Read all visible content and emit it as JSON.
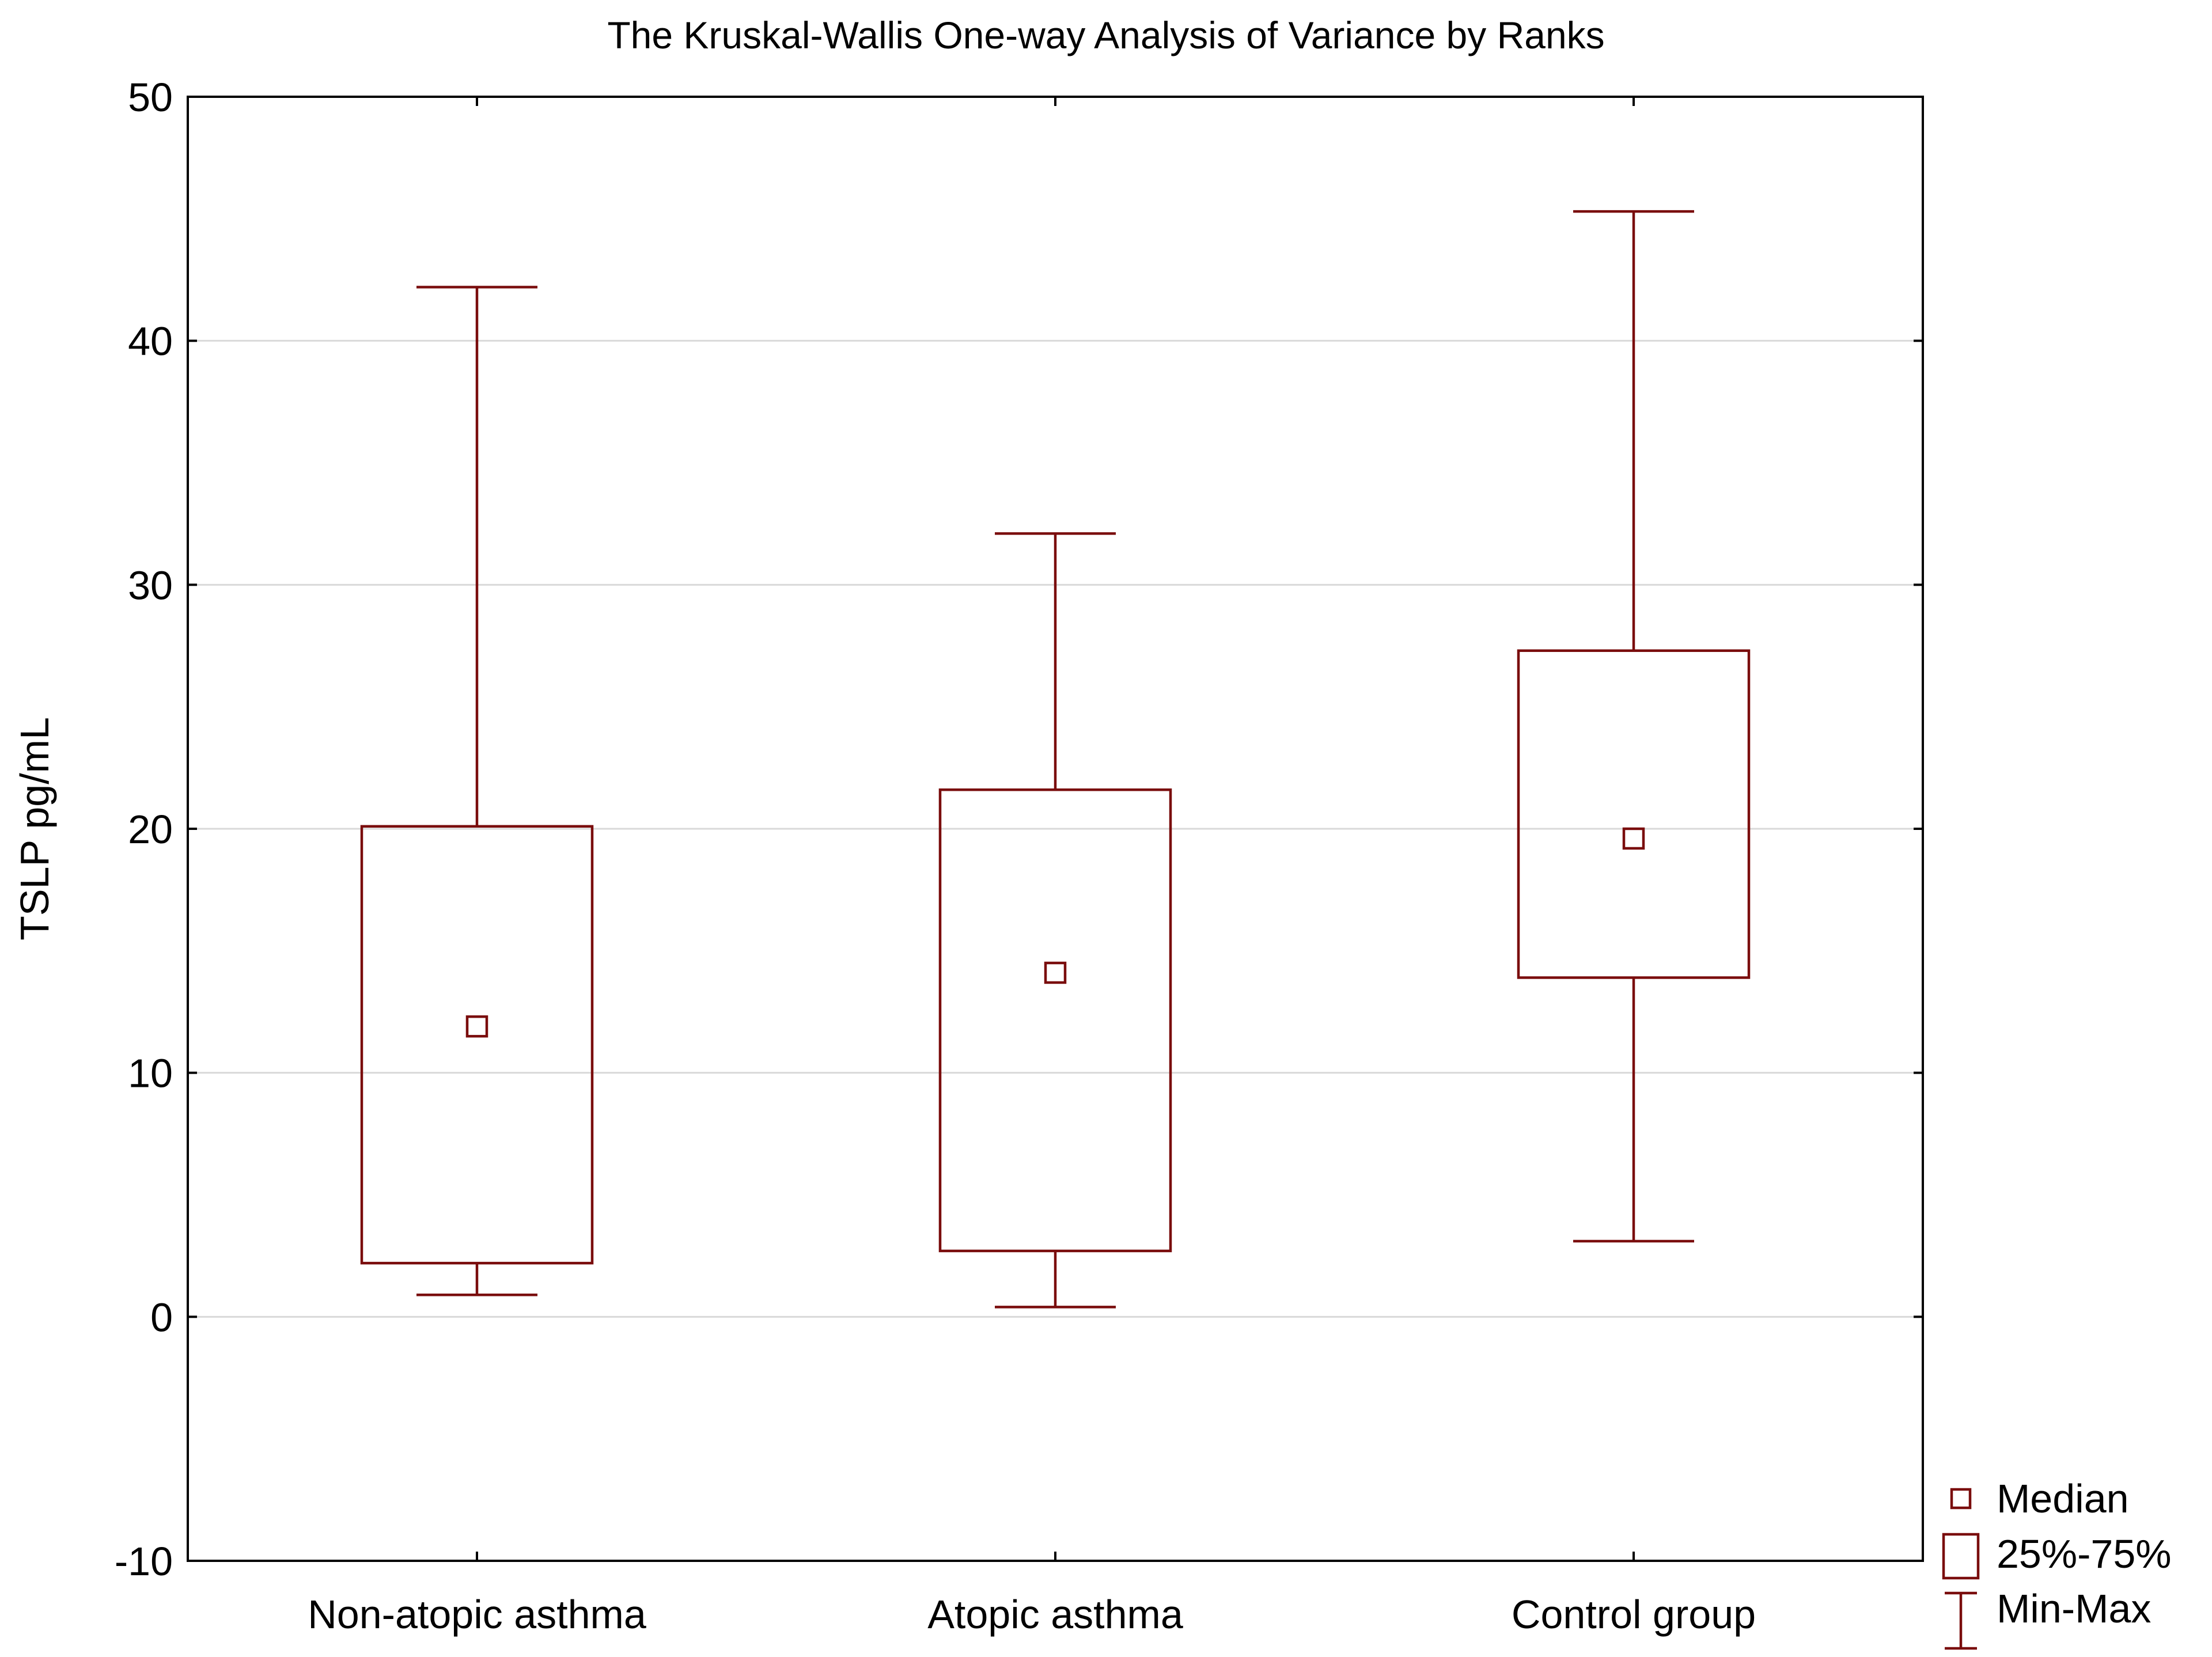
{
  "chart_data": {
    "type": "box",
    "title": "The Kruskal-Wallis One-way Analysis of Variance by Ranks",
    "xlabel": "",
    "ylabel": "TSLP pg/mL",
    "ylim": [
      -10,
      50
    ],
    "yticks": [
      -10,
      0,
      10,
      20,
      30,
      40,
      50
    ],
    "ytick_labels": [
      "-10",
      "0",
      "10",
      "20",
      "30",
      "40",
      "50"
    ],
    "grid": true,
    "categories": [
      "Non-atopic asthma",
      "Atopic asthma",
      "Control group"
    ],
    "series": [
      {
        "name": "Non-atopic asthma",
        "min": 0.9,
        "q1": 2.2,
        "median": 11.9,
        "q3": 20.1,
        "max": 42.2
      },
      {
        "name": "Atopic asthma",
        "min": 0.4,
        "q1": 2.7,
        "median": 14.1,
        "q3": 21.6,
        "max": 32.1
      },
      {
        "name": "Control group",
        "min": 3.1,
        "q1": 13.9,
        "median": 19.6,
        "q3": 27.3,
        "max": 45.3
      }
    ],
    "legend": {
      "position": "bottom-right",
      "items": [
        "Median",
        "25%-75%",
        "Min-Max"
      ]
    },
    "colors": {
      "series": "#7a0d0d",
      "grid": "#d9d9d9",
      "axis": "#000000"
    }
  }
}
